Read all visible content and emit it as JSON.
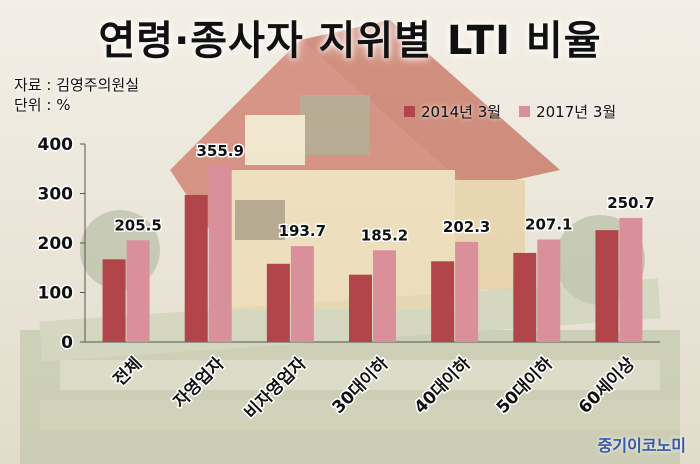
{
  "header": {
    "title": "연령·종사자 지위별 LTI 비율",
    "source": "자료 : 김영주의원실",
    "unit": "단위 : %"
  },
  "watermark": "중기이코노미",
  "colors": {
    "series_2014": "#b2454a",
    "series_2017": "#d9909a"
  },
  "chart_data": {
    "type": "bar",
    "categories": [
      "전체",
      "자영업자",
      "비자영업자",
      "30대이하",
      "40대이하",
      "50대이하",
      "60세이상"
    ],
    "series": [
      {
        "name": "2014년 3월",
        "values": [
          167,
          297,
          158,
          136,
          163,
          180,
          226
        ],
        "labels_shown": false
      },
      {
        "name": "2017년 3월",
        "values": [
          205.5,
          355.9,
          193.7,
          185.2,
          202.3,
          207.1,
          250.7
        ],
        "labels_shown": true
      }
    ],
    "data_labels": [
      "205.5",
      "355.9",
      "193.7",
      "185.2",
      "202.3",
      "207.1",
      "250.7"
    ],
    "yticks": [
      "0",
      "100",
      "200",
      "300",
      "400"
    ],
    "ylim": [
      0,
      400
    ],
    "legend_position": "top-right",
    "grid": false
  }
}
